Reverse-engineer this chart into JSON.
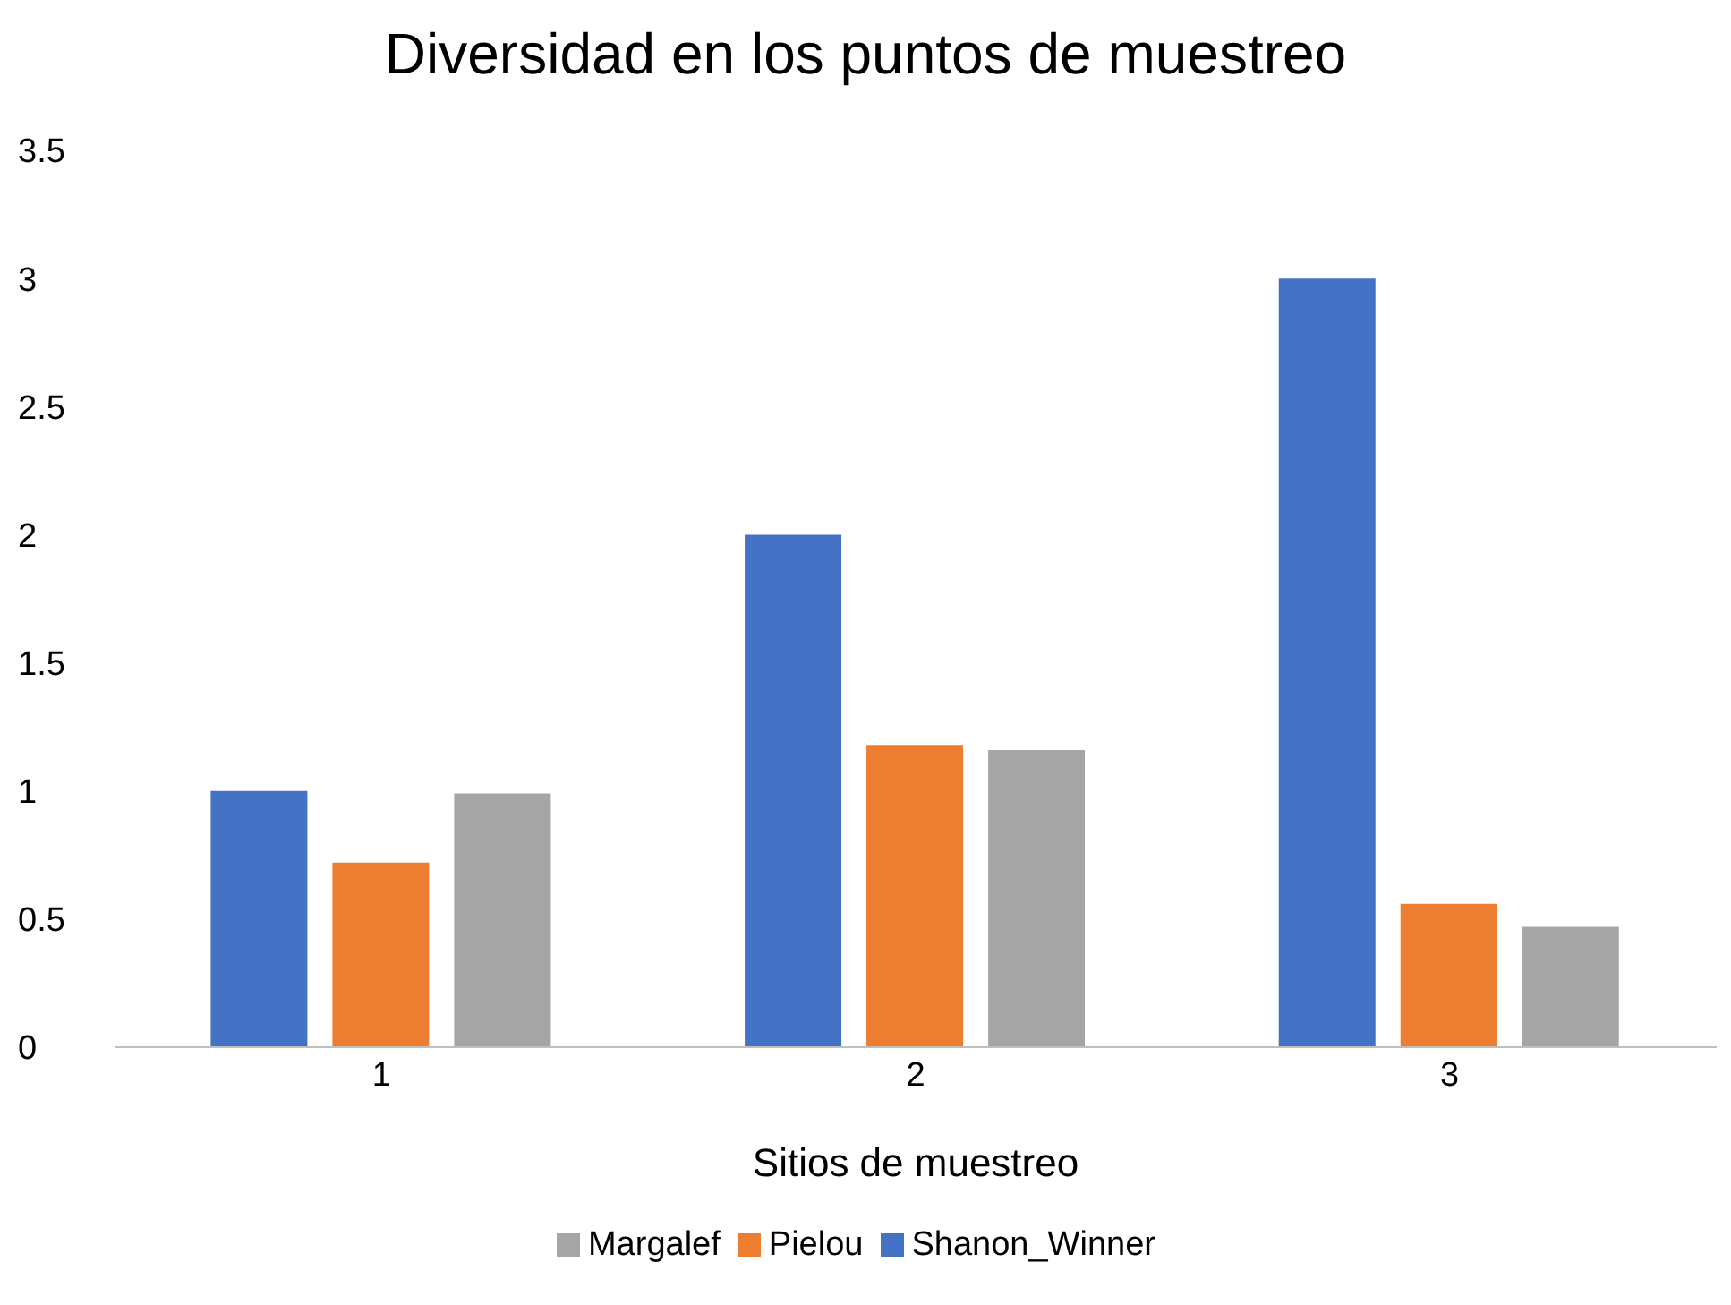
{
  "chart_data": {
    "type": "bar",
    "title": "Diversidad en los puntos de muestreo",
    "xlabel": "Sitios de muestreo",
    "categories": [
      "1",
      "2",
      "3"
    ],
    "series": [
      {
        "name": "Shanon_Winner",
        "color": "#4472c4",
        "values": [
          1.0,
          2.0,
          3.0
        ]
      },
      {
        "name": "Pielou",
        "color": "#ed7d31",
        "values": [
          0.72,
          1.18,
          0.56
        ]
      },
      {
        "name": "Margalef",
        "color": "#a5a5a5",
        "values": [
          0.99,
          1.16,
          0.47
        ]
      }
    ],
    "ylim": [
      0,
      3.5
    ],
    "yticks": [
      0,
      0.5,
      1,
      1.5,
      2,
      2.5,
      3,
      3.5
    ],
    "grid": false,
    "legend": "bottom"
  }
}
